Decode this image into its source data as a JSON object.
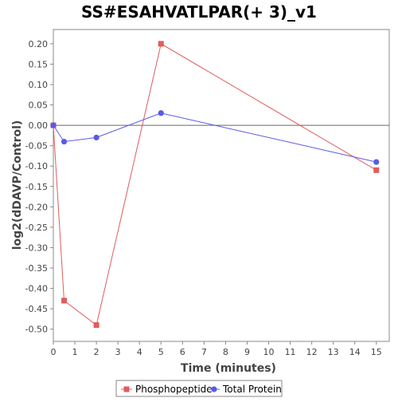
{
  "chart_data": {
    "type": "line",
    "title": "SS#ESAHVATLPAR(+ 3)_v1",
    "xlabel": "Time (minutes)",
    "ylabel": "log2(dDAVP/Control)",
    "xlim": [
      0,
      15.6
    ],
    "ylim": [
      -0.53,
      0.235
    ],
    "x_ticks": [
      0,
      1,
      2,
      3,
      4,
      5,
      6,
      7,
      8,
      9,
      10,
      11,
      12,
      13,
      14,
      15
    ],
    "y_ticks": [
      0.2,
      0.15,
      0.1,
      0.05,
      0.0,
      -0.05,
      -0.1,
      -0.15,
      -0.2,
      -0.25,
      -0.3,
      -0.35,
      -0.4,
      -0.45,
      -0.5
    ],
    "y_tick_labels": [
      "0.20",
      "0.15",
      "0.10",
      "0.05",
      "0.00",
      "-0.05",
      "-0.10",
      "-0.15",
      "-0.20",
      "-0.25",
      "-0.30",
      "-0.35",
      "-0.40",
      "-0.45",
      "-0.50"
    ],
    "grid": false,
    "zero_line": true,
    "legend_position": "bottom",
    "series": [
      {
        "name": "Phosphopeptide",
        "color": "#e05c5c",
        "marker": "square",
        "x": [
          0,
          0.5,
          2,
          5,
          15
        ],
        "y": [
          0.0,
          -0.43,
          -0.49,
          0.2,
          -0.11
        ]
      },
      {
        "name": "Total Protein",
        "color": "#5a5ae6",
        "marker": "circle",
        "x": [
          0,
          0.5,
          2,
          5,
          15
        ],
        "y": [
          0.0,
          -0.04,
          -0.03,
          0.03,
          -0.09
        ]
      }
    ]
  }
}
